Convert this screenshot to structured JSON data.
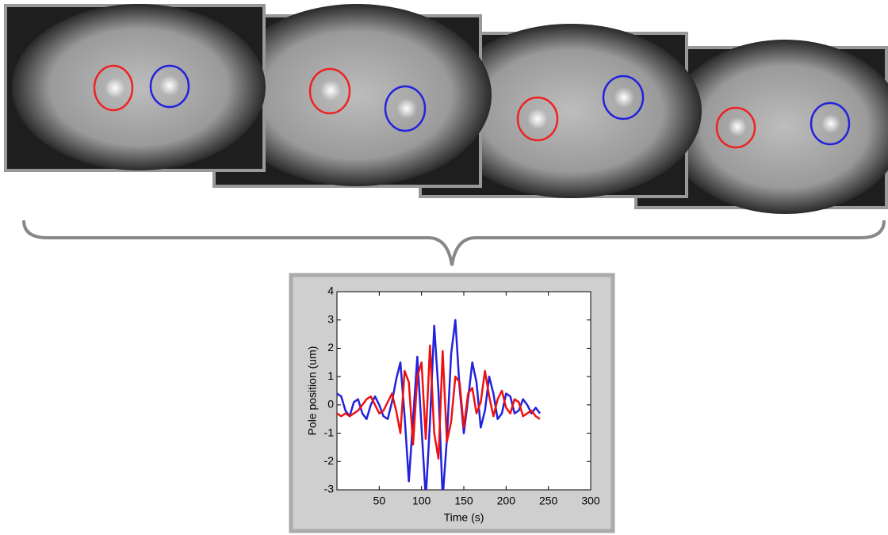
{
  "chart_data": {
    "type": "line",
    "xlabel": "Time (s)",
    "ylabel": "Pole position (um)",
    "x": [
      0,
      5,
      10,
      15,
      20,
      25,
      30,
      35,
      40,
      45,
      50,
      55,
      60,
      65,
      70,
      75,
      80,
      85,
      90,
      95,
      100,
      105,
      110,
      115,
      120,
      125,
      130,
      135,
      140,
      145,
      150,
      155,
      160,
      165,
      170,
      175,
      180,
      185,
      190,
      195,
      200,
      205,
      210,
      215,
      220,
      225,
      230,
      235,
      240
    ],
    "series": [
      {
        "color": "#2222dd",
        "values": [
          0.4,
          0.3,
          -0.2,
          -0.4,
          0.1,
          0.2,
          -0.3,
          -0.5,
          0.0,
          0.3,
          0.0,
          -0.4,
          -0.5,
          0.1,
          0.9,
          1.5,
          -0.4,
          -2.7,
          -0.5,
          1.7,
          -0.8,
          -3.3,
          -0.6,
          2.8,
          0.5,
          -3.3,
          -1.2,
          1.8,
          3.0,
          0.6,
          -1.0,
          0.2,
          1.5,
          0.8,
          -0.8,
          -0.2,
          1.0,
          0.4,
          -0.5,
          -0.3,
          0.4,
          0.3,
          -0.3,
          -0.2,
          0.2,
          0.0,
          -0.3,
          -0.1,
          -0.3
        ]
      },
      {
        "color": "#ee1111",
        "values": [
          -0.3,
          -0.4,
          -0.3,
          -0.4,
          -0.3,
          -0.2,
          0.0,
          0.2,
          0.3,
          0.0,
          -0.3,
          -0.2,
          0.1,
          0.4,
          -0.2,
          -1.0,
          1.2,
          0.8,
          -1.4,
          1.0,
          1.5,
          -1.2,
          2.1,
          -1.0,
          -1.9,
          1.9,
          -1.3,
          -0.6,
          1.0,
          0.8,
          -0.8,
          0.4,
          0.6,
          -0.3,
          0.1,
          1.2,
          0.3,
          -0.4,
          0.2,
          0.5,
          -0.1,
          -0.3,
          0.2,
          0.1,
          -0.4,
          -0.3,
          -0.2,
          -0.4,
          -0.5
        ]
      }
    ],
    "xlim": [
      0,
      300
    ],
    "xticks": [
      50,
      100,
      150,
      200,
      250,
      300
    ],
    "ylim": [
      -3,
      4
    ],
    "yticks": [
      -3,
      -2,
      -1,
      0,
      1,
      2,
      3,
      4
    ]
  }
}
